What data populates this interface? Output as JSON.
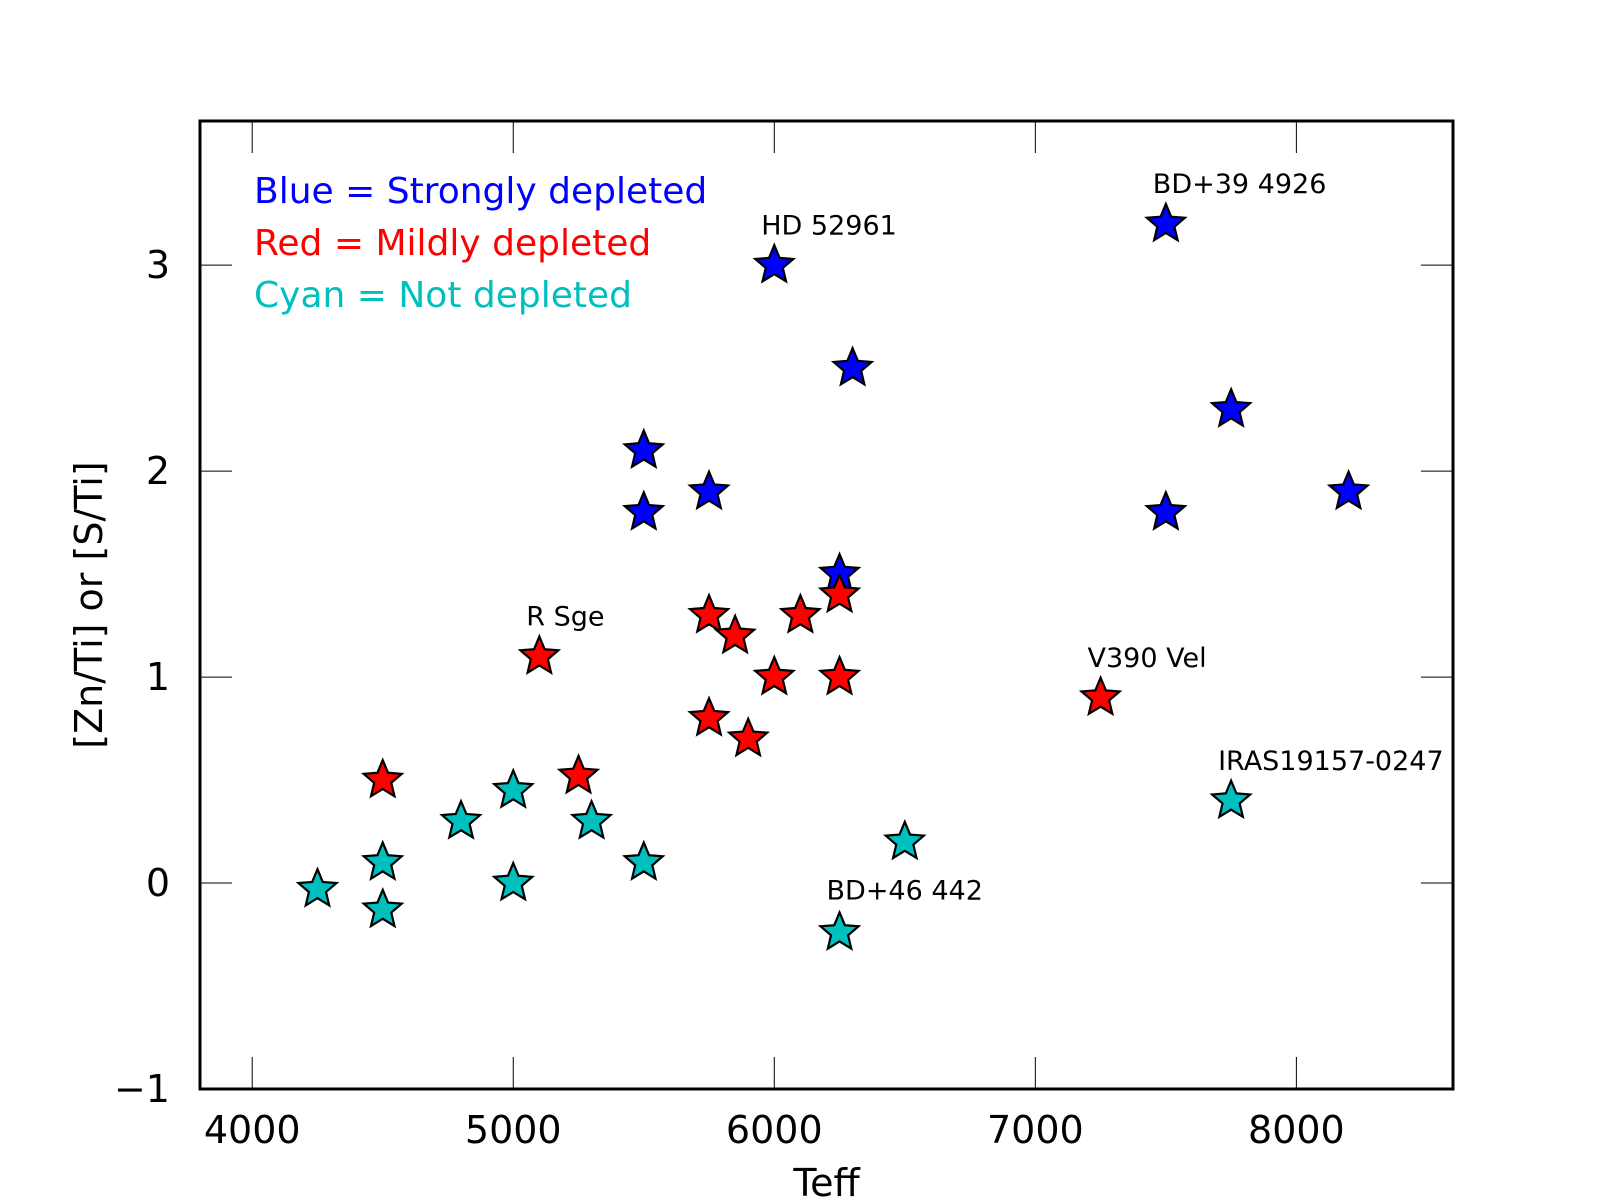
{
  "chart_data": {
    "type": "scatter",
    "title": "",
    "xlabel": "Teff",
    "ylabel": "[Zn/Ti] or [S/Ti]",
    "xlim": [
      3800,
      8600
    ],
    "ylim": [
      -1,
      3.7
    ],
    "xticks": [
      4000,
      5000,
      6000,
      7000,
      8000
    ],
    "yticks": [
      -1,
      0,
      1,
      2,
      3
    ],
    "ytick_labels": [
      "−1",
      "0",
      "1",
      "2",
      "3"
    ],
    "marker": "star",
    "legend": [
      {
        "text": "Blue = Strongly depleted",
        "color": "#0000ff"
      },
      {
        "text": "Red = Mildly depleted",
        "color": "#ff0000"
      },
      {
        "text": "Cyan = Not depleted",
        "color": "#00bfbf"
      }
    ],
    "series": [
      {
        "name": "Strongly depleted",
        "color": "#0000ff",
        "points": [
          {
            "x": 6000,
            "y": 3.0
          },
          {
            "x": 6300,
            "y": 2.5
          },
          {
            "x": 5500,
            "y": 2.1
          },
          {
            "x": 5500,
            "y": 1.8
          },
          {
            "x": 5750,
            "y": 1.9
          },
          {
            "x": 6250,
            "y": 1.5
          },
          {
            "x": 7500,
            "y": 3.2
          },
          {
            "x": 7750,
            "y": 2.3
          },
          {
            "x": 7500,
            "y": 1.8
          },
          {
            "x": 8200,
            "y": 1.9
          }
        ]
      },
      {
        "name": "Mildly depleted",
        "color": "#ff0000",
        "points": [
          {
            "x": 5100,
            "y": 1.1
          },
          {
            "x": 5750,
            "y": 1.3
          },
          {
            "x": 5850,
            "y": 1.2
          },
          {
            "x": 6100,
            "y": 1.3
          },
          {
            "x": 6250,
            "y": 1.4
          },
          {
            "x": 6000,
            "y": 1.0
          },
          {
            "x": 6250,
            "y": 1.0
          },
          {
            "x": 5750,
            "y": 0.8
          },
          {
            "x": 5900,
            "y": 0.7
          },
          {
            "x": 4500,
            "y": 0.5
          },
          {
            "x": 5250,
            "y": 0.52
          },
          {
            "x": 7250,
            "y": 0.9
          }
        ]
      },
      {
        "name": "Not depleted",
        "color": "#00bfbf",
        "points": [
          {
            "x": 4250,
            "y": -0.03
          },
          {
            "x": 4500,
            "y": 0.1
          },
          {
            "x": 4500,
            "y": -0.13
          },
          {
            "x": 4800,
            "y": 0.3
          },
          {
            "x": 5000,
            "y": 0.45
          },
          {
            "x": 5000,
            "y": 0.0
          },
          {
            "x": 5300,
            "y": 0.3
          },
          {
            "x": 5500,
            "y": 0.1
          },
          {
            "x": 6500,
            "y": 0.2
          },
          {
            "x": 6250,
            "y": -0.24
          },
          {
            "x": 7750,
            "y": 0.4
          }
        ]
      }
    ],
    "annotations": [
      {
        "text": "HD 52961",
        "x": 5950,
        "y": 3.15
      },
      {
        "text": "BD+39 4926",
        "x": 7450,
        "y": 3.35
      },
      {
        "text": "R Sge",
        "x": 5050,
        "y": 1.25
      },
      {
        "text": "V390 Vel",
        "x": 7200,
        "y": 1.05
      },
      {
        "text": "IRAS19157-0247",
        "x": 7700,
        "y": 0.55
      },
      {
        "text": "BD+46 442",
        "x": 6200,
        "y": -0.08
      }
    ]
  }
}
